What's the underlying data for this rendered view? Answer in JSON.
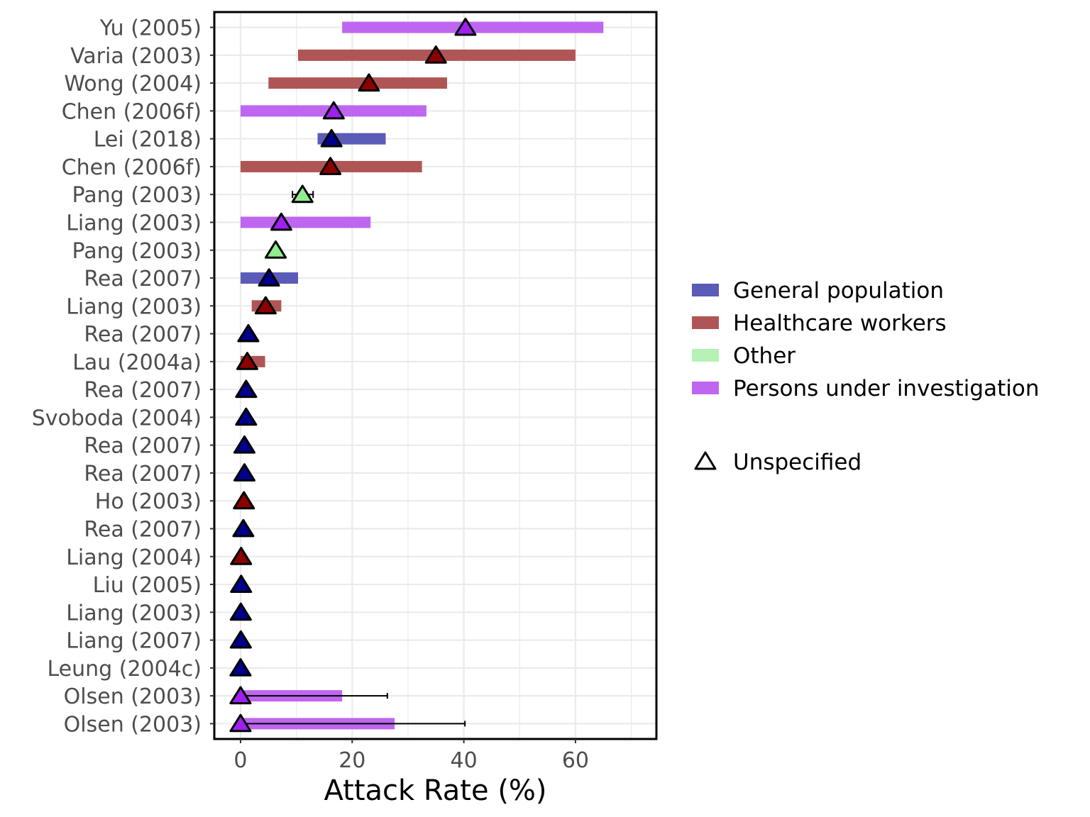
{
  "chart_data": {
    "type": "forest",
    "xlabel": "Attack Rate (%)",
    "x_ticks": [
      0,
      20,
      40,
      60
    ],
    "xlim": [
      -4.7,
      74.5
    ],
    "grid": true,
    "legend_position": "right",
    "colors": {
      "General population": "#5b5bb8",
      "Healthcare workers": "#b05555",
      "Other": "#b6f2b6",
      "Persons under investigation": "#bf66f0"
    },
    "marker_colors": {
      "General population": "#00008b",
      "Healthcare workers": "#8b0000",
      "Other": "#90ee90",
      "Persons under investigation": "#a020f0"
    },
    "legend": {
      "groups": [
        "General population",
        "Healthcare workers",
        "Other",
        "Persons under investigation"
      ],
      "shape_label": "Unspecified",
      "shape_icon": "triangle-icon"
    },
    "studies": [
      {
        "label": "Yu (2005)",
        "group": "Persons under investigation",
        "estimate": 40.3,
        "low": 18.2,
        "high": 65.0
      },
      {
        "label": "Varia (2003)",
        "group": "Healthcare workers",
        "estimate": 35.0,
        "low": 10.3,
        "high": 60.0
      },
      {
        "label": "Wong (2004)",
        "group": "Healthcare workers",
        "estimate": 23.0,
        "low": 5.0,
        "high": 37.0
      },
      {
        "label": "Chen (2006f)",
        "group": "Persons under investigation",
        "estimate": 16.7,
        "low": 0.0,
        "high": 33.3
      },
      {
        "label": "Lei (2018)",
        "group": "General population",
        "estimate": 16.3,
        "low": 13.8,
        "high": 26.0
      },
      {
        "label": "Chen (2006f)",
        "group": "Healthcare workers",
        "estimate": 16.1,
        "low": 0.0,
        "high": 32.5
      },
      {
        "label": "Pang (2003)",
        "group": "Other",
        "estimate": 11.1,
        "low": 9.3,
        "high": 13.0,
        "whisker": true
      },
      {
        "label": "Liang (2003)",
        "group": "Persons under investigation",
        "estimate": 7.3,
        "low": 0.0,
        "high": 23.3
      },
      {
        "label": "Pang (2003)",
        "group": "Other",
        "estimate": 6.3
      },
      {
        "label": "Rea (2007)",
        "group": "General population",
        "estimate": 5.1,
        "low": 0.0,
        "high": 10.3
      },
      {
        "label": "Liang (2003)",
        "group": "Healthcare workers",
        "estimate": 4.5,
        "low": 2.0,
        "high": 7.3
      },
      {
        "label": "Rea (2007)",
        "group": "General population",
        "estimate": 1.4
      },
      {
        "label": "Lau (2004a)",
        "group": "Healthcare workers",
        "estimate": 1.2,
        "low": 0.0,
        "high": 4.4
      },
      {
        "label": "Rea (2007)",
        "group": "General population",
        "estimate": 1.0
      },
      {
        "label": "Svoboda (2004)",
        "group": "General population",
        "estimate": 1.0
      },
      {
        "label": "Rea (2007)",
        "group": "General population",
        "estimate": 0.7
      },
      {
        "label": "Rea (2007)",
        "group": "General population",
        "estimate": 0.7
      },
      {
        "label": "Ho (2003)",
        "group": "Healthcare workers",
        "estimate": 0.6
      },
      {
        "label": "Rea (2007)",
        "group": "General population",
        "estimate": 0.5
      },
      {
        "label": "Liang (2004)",
        "group": "Healthcare workers",
        "estimate": 0.1
      },
      {
        "label": "Liu (2005)",
        "group": "General population",
        "estimate": 0.1
      },
      {
        "label": "Liang (2003)",
        "group": "General population",
        "estimate": 0.05
      },
      {
        "label": "Liang (2007)",
        "group": "General population",
        "estimate": 0.05
      },
      {
        "label": "Leung (2004c)",
        "group": "General population",
        "estimate": 0.0
      },
      {
        "label": "Olsen (2003)",
        "group": "Persons under investigation",
        "estimate": 0.0,
        "low": 0.0,
        "high": 18.2,
        "whisker_high": 26.3
      },
      {
        "label": "Olsen (2003)",
        "group": "Persons under investigation",
        "estimate": 0.0,
        "low": 0.0,
        "high": 27.6,
        "whisker_high": 40.2
      }
    ]
  }
}
